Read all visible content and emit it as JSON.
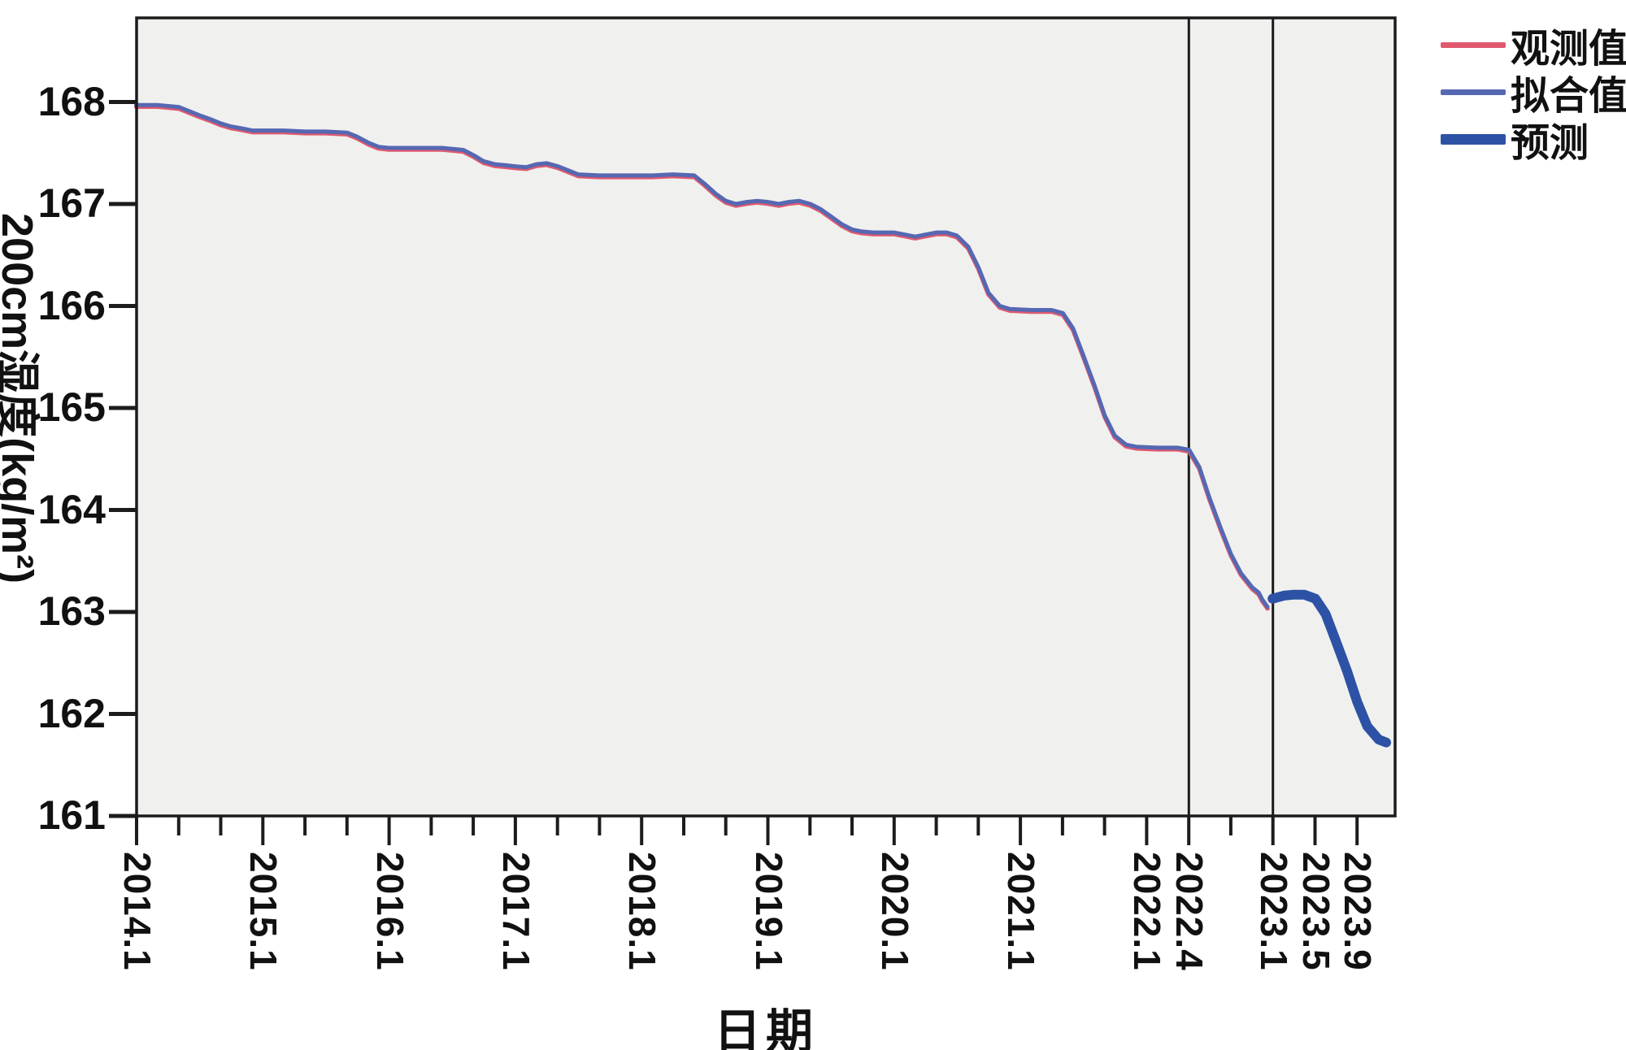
{
  "axes": {
    "x": {
      "title": "日期",
      "labeled_ticks": [
        {
          "label": "2014.1",
          "t": 2014.083
        },
        {
          "label": "2015.1",
          "t": 2015.083
        },
        {
          "label": "2016.1",
          "t": 2016.083
        },
        {
          "label": "2017.1",
          "t": 2017.083
        },
        {
          "label": "2018.1",
          "t": 2018.083
        },
        {
          "label": "2019.1",
          "t": 2019.083
        },
        {
          "label": "2020.1",
          "t": 2020.083
        },
        {
          "label": "2021.1",
          "t": 2021.083
        },
        {
          "label": "2022.1",
          "t": 2022.083
        },
        {
          "label": "2022.4",
          "t": 2022.417
        },
        {
          "label": "2023.1",
          "t": 2023.083
        },
        {
          "label": "2023.5",
          "t": 2023.417
        },
        {
          "label": "2023.9",
          "t": 2023.75
        }
      ],
      "minor_tick_step_years": 0.3333,
      "range_t": [
        2014.083,
        2024.05
      ]
    },
    "y": {
      "title": "200cm湿度(kg/m²)",
      "ticks": [
        "161",
        "162",
        "163",
        "164",
        "165",
        "166",
        "167",
        "168"
      ],
      "range": [
        161,
        168.65
      ]
    }
  },
  "legend": {
    "items": [
      {
        "label": "观测值",
        "color": "#e0596e",
        "thickness": 7
      },
      {
        "label": "拟合值",
        "color": "#5668b2",
        "thickness": 7
      },
      {
        "label": "预测",
        "color": "#2d52a5",
        "thickness": 13
      }
    ]
  },
  "reference_lines": {
    "x_t": [
      2022.417,
      2023.083
    ],
    "color": "#1a1a1a"
  },
  "colors": {
    "plot_background": "#f0f0ee",
    "page_background": "#ffffff",
    "axis": "#1c1c1c",
    "observed": "#e0596e",
    "fitted": "#5668b2",
    "forecast": "#2d52a5"
  },
  "chart_data": {
    "type": "line",
    "title": "",
    "xlabel": "日期",
    "ylabel": "200cm湿度(kg/m²)",
    "x_unit": "decimal_year",
    "ylim": [
      161,
      168.65
    ],
    "grid": false,
    "legend_position": "top-right-outside",
    "series": [
      {
        "name": "观测值",
        "role": "observed",
        "color": "#e0596e",
        "width": 5.5,
        "note": "Observed values overlap the fitted line almost exactly; drawn with ~2px offset beneath it.",
        "points_same_as": "拟合值"
      },
      {
        "name": "拟合值",
        "role": "fitted",
        "color": "#5668b2",
        "width": 5,
        "points": [
          [
            2014.08,
            167.97
          ],
          [
            2014.25,
            167.97
          ],
          [
            2014.42,
            167.95
          ],
          [
            2014.5,
            167.91
          ],
          [
            2014.58,
            167.87
          ],
          [
            2014.67,
            167.83
          ],
          [
            2014.75,
            167.79
          ],
          [
            2014.83,
            167.76
          ],
          [
            2014.92,
            167.74
          ],
          [
            2015.0,
            167.72
          ],
          [
            2015.25,
            167.72
          ],
          [
            2015.42,
            167.71
          ],
          [
            2015.58,
            167.71
          ],
          [
            2015.75,
            167.7
          ],
          [
            2015.83,
            167.66
          ],
          [
            2015.92,
            167.6
          ],
          [
            2016.0,
            167.56
          ],
          [
            2016.08,
            167.55
          ],
          [
            2016.33,
            167.55
          ],
          [
            2016.5,
            167.55
          ],
          [
            2016.67,
            167.53
          ],
          [
            2016.75,
            167.48
          ],
          [
            2016.83,
            167.42
          ],
          [
            2016.92,
            167.39
          ],
          [
            2017.0,
            167.38
          ],
          [
            2017.08,
            167.37
          ],
          [
            2017.17,
            167.36
          ],
          [
            2017.25,
            167.39
          ],
          [
            2017.33,
            167.4
          ],
          [
            2017.42,
            167.37
          ],
          [
            2017.5,
            167.33
          ],
          [
            2017.58,
            167.29
          ],
          [
            2017.75,
            167.28
          ],
          [
            2018.0,
            167.28
          ],
          [
            2018.17,
            167.28
          ],
          [
            2018.33,
            167.29
          ],
          [
            2018.5,
            167.28
          ],
          [
            2018.58,
            167.2
          ],
          [
            2018.67,
            167.1
          ],
          [
            2018.75,
            167.03
          ],
          [
            2018.83,
            167.0
          ],
          [
            2018.92,
            167.02
          ],
          [
            2019.0,
            167.03
          ],
          [
            2019.08,
            167.02
          ],
          [
            2019.17,
            167.0
          ],
          [
            2019.25,
            167.02
          ],
          [
            2019.33,
            167.03
          ],
          [
            2019.42,
            167.0
          ],
          [
            2019.5,
            166.95
          ],
          [
            2019.58,
            166.88
          ],
          [
            2019.67,
            166.8
          ],
          [
            2019.75,
            166.75
          ],
          [
            2019.83,
            166.73
          ],
          [
            2019.92,
            166.72
          ],
          [
            2020.08,
            166.72
          ],
          [
            2020.17,
            166.7
          ],
          [
            2020.25,
            166.68
          ],
          [
            2020.33,
            166.7
          ],
          [
            2020.42,
            166.72
          ],
          [
            2020.5,
            166.72
          ],
          [
            2020.58,
            166.69
          ],
          [
            2020.67,
            166.58
          ],
          [
            2020.75,
            166.38
          ],
          [
            2020.83,
            166.13
          ],
          [
            2020.92,
            166.0
          ],
          [
            2021.0,
            165.97
          ],
          [
            2021.17,
            165.96
          ],
          [
            2021.33,
            165.96
          ],
          [
            2021.42,
            165.93
          ],
          [
            2021.5,
            165.78
          ],
          [
            2021.58,
            165.52
          ],
          [
            2021.67,
            165.22
          ],
          [
            2021.75,
            164.93
          ],
          [
            2021.83,
            164.73
          ],
          [
            2021.92,
            164.64
          ],
          [
            2022.0,
            164.62
          ],
          [
            2022.17,
            164.61
          ],
          [
            2022.33,
            164.61
          ],
          [
            2022.42,
            164.59
          ],
          [
            2022.5,
            164.42
          ],
          [
            2022.58,
            164.12
          ],
          [
            2022.67,
            163.82
          ],
          [
            2022.75,
            163.57
          ],
          [
            2022.83,
            163.38
          ],
          [
            2022.92,
            163.24
          ],
          [
            2022.97,
            163.19
          ],
          [
            2023.0,
            163.12
          ],
          [
            2023.04,
            163.05
          ]
        ]
      },
      {
        "name": "预测",
        "role": "forecast",
        "color": "#2d52a5",
        "width": 12,
        "points": [
          [
            2023.08,
            163.13
          ],
          [
            2023.17,
            163.16
          ],
          [
            2023.25,
            163.17
          ],
          [
            2023.33,
            163.17
          ],
          [
            2023.42,
            163.13
          ],
          [
            2023.5,
            162.98
          ],
          [
            2023.58,
            162.72
          ],
          [
            2023.67,
            162.42
          ],
          [
            2023.75,
            162.12
          ],
          [
            2023.83,
            161.88
          ],
          [
            2023.92,
            161.75
          ],
          [
            2023.98,
            161.72
          ]
        ]
      }
    ]
  }
}
